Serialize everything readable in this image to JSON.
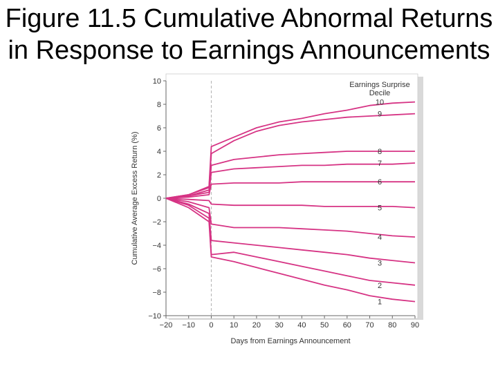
{
  "slide": {
    "title": "Figure 11.5 Cumulative Abnormal Returns in Response to Earnings Announcements"
  },
  "colors": {
    "series": "#d63384",
    "plot_bg": "#ffffff",
    "axis": "#666666",
    "event_line": "#b0b0b0",
    "shadow": "#d9d9d9"
  },
  "chart_data": {
    "type": "line",
    "xlabel": "Days from Earnings Announcement",
    "ylabel": "Cumulative Average Excess Return (%)",
    "xlim": [
      -20,
      90
    ],
    "ylim": [
      -10,
      10
    ],
    "x_ticks": [
      -20,
      -10,
      0,
      10,
      20,
      30,
      40,
      50,
      60,
      70,
      80,
      90
    ],
    "x_tick_labels": [
      "−20",
      "−10",
      "0",
      "10",
      "20",
      "30",
      "40",
      "50",
      "60",
      "70",
      "80",
      "90"
    ],
    "y_ticks": [
      -10,
      -8,
      -6,
      -4,
      -2,
      0,
      2,
      4,
      6,
      8,
      10
    ],
    "y_tick_labels": [
      "−10",
      "−8",
      "−6",
      "−4",
      "−2",
      "0",
      "2",
      "4",
      "6",
      "8",
      "10"
    ],
    "legend_title": [
      "Earnings Surprise",
      "Decile"
    ],
    "legend_position": "top-right",
    "event_marker_x": 0,
    "x": [
      -20,
      -10,
      -1,
      0,
      10,
      20,
      30,
      40,
      50,
      60,
      70,
      80,
      90
    ],
    "series": [
      {
        "name": "10",
        "values": [
          0,
          0.3,
          1.0,
          4.4,
          5.2,
          6.0,
          6.5,
          6.8,
          7.2,
          7.5,
          7.9,
          8.1,
          8.2
        ]
      },
      {
        "name": "9",
        "values": [
          0,
          0.3,
          0.9,
          3.8,
          4.9,
          5.7,
          6.2,
          6.5,
          6.7,
          6.9,
          7.0,
          7.1,
          7.2
        ]
      },
      {
        "name": "8",
        "values": [
          0,
          0.2,
          0.7,
          2.8,
          3.3,
          3.5,
          3.7,
          3.8,
          3.9,
          4.0,
          4.0,
          4.0,
          4.0
        ]
      },
      {
        "name": "7",
        "values": [
          0,
          0.2,
          0.5,
          2.2,
          2.5,
          2.6,
          2.7,
          2.8,
          2.8,
          2.9,
          2.9,
          2.9,
          3.0
        ]
      },
      {
        "name": "6",
        "values": [
          0,
          0.1,
          0.3,
          1.2,
          1.3,
          1.3,
          1.3,
          1.4,
          1.4,
          1.4,
          1.4,
          1.4,
          1.4
        ]
      },
      {
        "name": "5",
        "values": [
          0,
          -0.1,
          -0.2,
          -0.5,
          -0.6,
          -0.6,
          -0.6,
          -0.6,
          -0.7,
          -0.7,
          -0.7,
          -0.7,
          -0.8
        ]
      },
      {
        "name": "4",
        "values": [
          0,
          -0.3,
          -0.8,
          -2.2,
          -2.5,
          -2.5,
          -2.5,
          -2.6,
          -2.7,
          -2.8,
          -3.0,
          -3.2,
          -3.3
        ]
      },
      {
        "name": "3",
        "values": [
          0,
          -0.5,
          -1.3,
          -3.6,
          -3.8,
          -4.0,
          -4.2,
          -4.4,
          -4.6,
          -4.8,
          -5.1,
          -5.3,
          -5.5
        ]
      },
      {
        "name": "2",
        "values": [
          0,
          -0.6,
          -1.7,
          -4.8,
          -4.6,
          -5.0,
          -5.4,
          -5.8,
          -6.2,
          -6.6,
          -7.0,
          -7.2,
          -7.4
        ]
      },
      {
        "name": "1",
        "values": [
          0,
          -0.8,
          -2.0,
          -5.0,
          -5.4,
          -5.9,
          -6.4,
          -6.9,
          -7.4,
          -7.8,
          -8.3,
          -8.6,
          -8.8
        ]
      }
    ]
  }
}
